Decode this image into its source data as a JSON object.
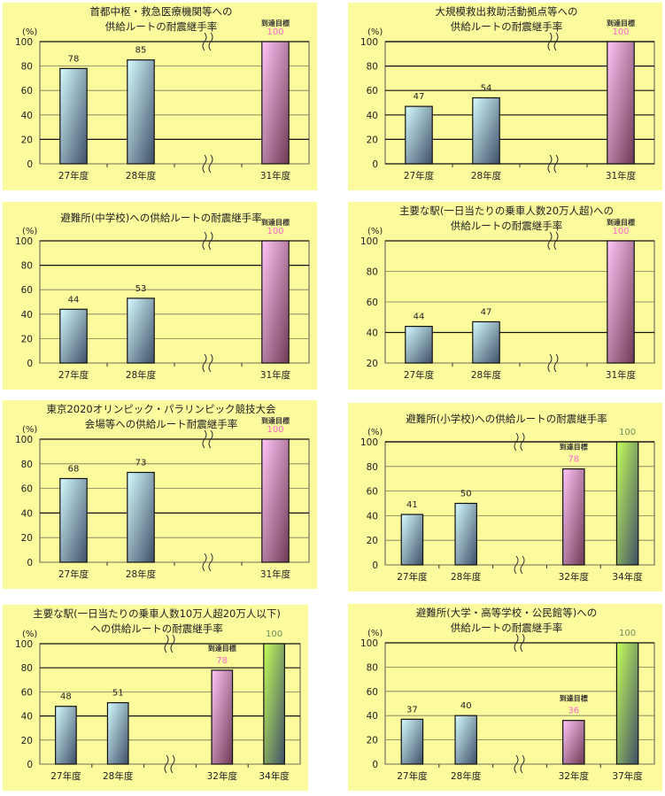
{
  "colors": {
    "panel_bg": "#fbfb9e",
    "actual_top": "#d4fbff",
    "actual_bottom": "#3f5068",
    "target_top": "#ffc4f6",
    "target_bottom": "#6e3b55",
    "final_top": "#c6ff5a",
    "final_bottom": "#3f5068",
    "target_label": "#ff66cc",
    "final_label": "#6f8f5f"
  },
  "chart_data": [
    {
      "type": "bar",
      "title": [
        "首都中枢・救急医療機関等への",
        "供給ルートの耐震継手率"
      ],
      "unit": "(%)",
      "target_label": "到達目標",
      "ylim": [
        0,
        100
      ],
      "yticks": [
        "0",
        "20",
        "40",
        "60",
        "80",
        "100"
      ],
      "axis_break": true,
      "dark_gridlines": [
        20
      ],
      "categories": [
        "27年度",
        "28年度",
        "",
        "31年度"
      ],
      "bars": [
        {
          "category": "27年度",
          "value": 78,
          "label": "78",
          "kind": "actual"
        },
        {
          "category": "28年度",
          "value": 85,
          "label": "85",
          "kind": "actual"
        },
        null,
        {
          "category": "31年度",
          "value": 100,
          "label": "100",
          "kind": "target"
        }
      ]
    },
    {
      "type": "bar",
      "title": [
        "大規模救出救助活動拠点等への",
        "供給ルートの耐震継手率"
      ],
      "unit": "(%)",
      "target_label": "到達目標",
      "ylim": [
        0,
        100
      ],
      "yticks": [
        "0",
        "20",
        "40",
        "60",
        "80",
        "100"
      ],
      "axis_break": true,
      "dark_gridlines": [
        0,
        20,
        40,
        60,
        80,
        100
      ],
      "categories": [
        "27年度",
        "28年度",
        "",
        "31年度"
      ],
      "bars": [
        {
          "category": "27年度",
          "value": 47,
          "label": "47",
          "kind": "actual"
        },
        {
          "category": "28年度",
          "value": 54,
          "label": "54",
          "kind": "actual"
        },
        null,
        {
          "category": "31年度",
          "value": 100,
          "label": "100",
          "kind": "target"
        }
      ]
    },
    {
      "type": "bar",
      "title": [
        "避難所(中学校)への供給ルートの耐震継手率"
      ],
      "unit": "(%)",
      "target_label": "到達目標",
      "ylim": [
        0,
        100
      ],
      "yticks": [
        "0",
        "20",
        "40",
        "60",
        "80",
        "100"
      ],
      "axis_break": true,
      "dark_gridlines": [
        80
      ],
      "categories": [
        "27年度",
        "28年度",
        "",
        "31年度"
      ],
      "bars": [
        {
          "category": "27年度",
          "value": 44,
          "label": "44",
          "kind": "actual"
        },
        {
          "category": "28年度",
          "value": 53,
          "label": "53",
          "kind": "actual"
        },
        null,
        {
          "category": "31年度",
          "value": 100,
          "label": "100",
          "kind": "target"
        }
      ]
    },
    {
      "type": "bar",
      "title": [
        "主要な駅(一日当たりの乗車人数20万人超)への",
        "供給ルートの耐震継手率"
      ],
      "unit": "(%)",
      "target_label": "到達目標",
      "ylim": [
        20,
        100
      ],
      "yticks": [
        "20",
        "40",
        "60",
        "80",
        "100"
      ],
      "axis_break": true,
      "dark_gridlines": [
        40
      ],
      "categories": [
        "27年度",
        "28年度",
        "",
        "31年度"
      ],
      "bars": [
        {
          "category": "27年度",
          "value": 44,
          "label": "44",
          "kind": "actual"
        },
        {
          "category": "28年度",
          "value": 47,
          "label": "47",
          "kind": "actual"
        },
        null,
        {
          "category": "31年度",
          "value": 100,
          "label": "100",
          "kind": "target"
        }
      ]
    },
    {
      "type": "bar",
      "title": [
        "東京2020オリンピック・パラリンピック競技大会",
        "会場等への供給ルート耐震継手率"
      ],
      "unit": "(%)",
      "target_label": "到達目標",
      "ylim": [
        0,
        100
      ],
      "yticks": [
        "0",
        "20",
        "40",
        "60",
        "80",
        "100"
      ],
      "axis_break": true,
      "dark_gridlines": [
        40
      ],
      "categories": [
        "27年度",
        "28年度",
        "",
        "31年度"
      ],
      "bars": [
        {
          "category": "27年度",
          "value": 68,
          "label": "68",
          "kind": "actual"
        },
        {
          "category": "28年度",
          "value": 73,
          "label": "73",
          "kind": "actual"
        },
        null,
        {
          "category": "31年度",
          "value": 100,
          "label": "100",
          "kind": "target"
        }
      ]
    },
    {
      "type": "bar",
      "title": [
        "避難所(小学校)への供給ルートの耐震継手率"
      ],
      "unit": "(%)",
      "target_label": "到達目標",
      "ylim": [
        0,
        100
      ],
      "yticks": [
        "0",
        "20",
        "40",
        "60",
        "80",
        "100"
      ],
      "axis_break": true,
      "dark_gridlines": [
        100
      ],
      "categories": [
        "27年度",
        "28年度",
        "",
        "32年度",
        "34年度"
      ],
      "bars": [
        {
          "category": "27年度",
          "value": 41,
          "label": "41",
          "kind": "actual"
        },
        {
          "category": "28年度",
          "value": 50,
          "label": "50",
          "kind": "actual"
        },
        null,
        {
          "category": "32年度",
          "value": 78,
          "label": "78",
          "kind": "target"
        },
        {
          "category": "34年度",
          "value": 100,
          "label": "100",
          "kind": "final"
        }
      ]
    },
    {
      "type": "bar",
      "title": [
        "主要な駅(一日当たりの乗車人数10万人超20万人以下)",
        "への供給ルートの耐震継手率"
      ],
      "unit": "(%)",
      "target_label": "到達目標",
      "ylim": [
        0,
        100
      ],
      "yticks": [
        "0",
        "20",
        "40",
        "60",
        "80",
        "100"
      ],
      "axis_break": true,
      "dark_gridlines": [
        40,
        80
      ],
      "categories": [
        "27年度",
        "28年度",
        "",
        "32年度",
        "34年度"
      ],
      "bars": [
        {
          "category": "27年度",
          "value": 48,
          "label": "48",
          "kind": "actual"
        },
        {
          "category": "28年度",
          "value": 51,
          "label": "51",
          "kind": "actual"
        },
        null,
        {
          "category": "32年度",
          "value": 78,
          "label": "78",
          "kind": "target"
        },
        {
          "category": "34年度",
          "value": 100,
          "label": "100",
          "kind": "final"
        }
      ]
    },
    {
      "type": "bar",
      "title": [
        "避難所(大学・高等学校・公民館等)への",
        "供給ルートの耐震継手率"
      ],
      "unit": "(%)",
      "target_label": "到達目標",
      "ylim": [
        0,
        100
      ],
      "yticks": [
        "0",
        "20",
        "40",
        "60",
        "80",
        "100"
      ],
      "axis_break": true,
      "dark_gridlines": [],
      "categories": [
        "27年度",
        "28年度",
        "",
        "32年度",
        "37年度"
      ],
      "bars": [
        {
          "category": "27年度",
          "value": 37,
          "label": "37",
          "kind": "actual"
        },
        {
          "category": "28年度",
          "value": 40,
          "label": "40",
          "kind": "actual"
        },
        null,
        {
          "category": "32年度",
          "value": 36,
          "label": "36",
          "kind": "target"
        },
        {
          "category": "37年度",
          "value": 100,
          "label": "100",
          "kind": "final"
        }
      ]
    }
  ]
}
